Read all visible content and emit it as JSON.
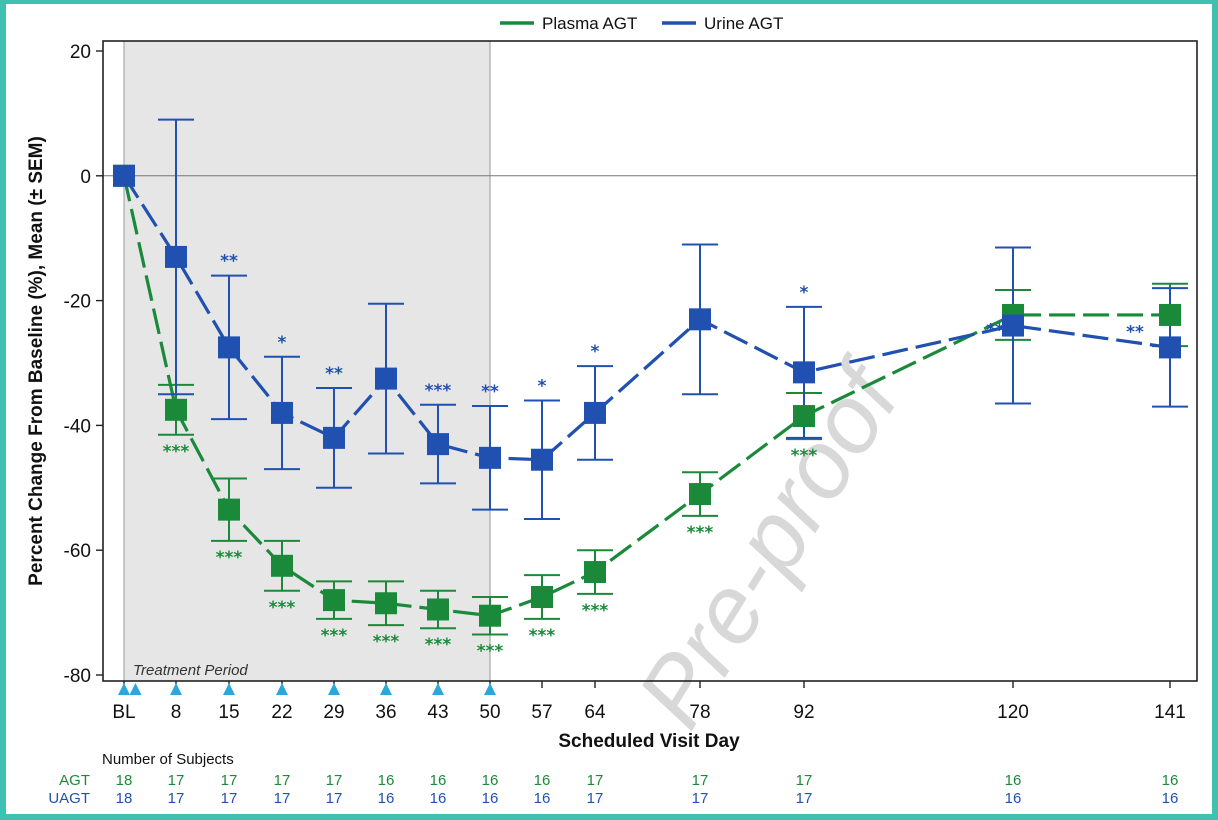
{
  "chart_data": {
    "type": "line",
    "x_categories": [
      "BL",
      "8",
      "15",
      "22",
      "29",
      "36",
      "43",
      "50",
      "57",
      "64",
      "78",
      "92",
      "120",
      "141"
    ],
    "x_days": [
      0,
      8,
      15,
      22,
      29,
      36,
      43,
      50,
      57,
      64,
      78,
      92,
      120,
      141
    ],
    "xlabel": "Scheduled Visit Day",
    "ylabel": "Percent Change From Baseline (%),  Mean (± SEM)",
    "ylim": [
      -80,
      20
    ],
    "yticks": [
      "20",
      "0",
      "-20",
      "-40",
      "-60",
      "-80"
    ],
    "shaded_region_label": "Treatment Period",
    "shaded_region": [
      0,
      50
    ],
    "dosing_days": [
      0,
      1,
      8,
      15,
      22,
      29,
      36,
      43,
      50
    ],
    "legend": {
      "placement": "top-center"
    },
    "series": [
      {
        "name": "Plasma AGT",
        "color": "#1a8a3a",
        "days": [
          0,
          8,
          15,
          22,
          29,
          36,
          43,
          50,
          57,
          64,
          78,
          92,
          120,
          141
        ],
        "values": [
          0,
          -37.5,
          -53.5,
          -62.5,
          -68,
          -68.5,
          -69.5,
          -70.5,
          -67.5,
          -63.5,
          -51,
          -38.5,
          -22.3,
          -22.3
        ],
        "sem": [
          0,
          4,
          5,
          4,
          3,
          3.5,
          3,
          3,
          3.5,
          3.5,
          3.5,
          3.7,
          4,
          5
        ],
        "stars": [
          "",
          "***",
          "***",
          "***",
          "***",
          "***",
          "***",
          "***",
          "***",
          "***",
          "***",
          "***",
          "",
          ""
        ]
      },
      {
        "name": "Urine AGT",
        "color": "#2050b0",
        "days": [
          0,
          8,
          15,
          22,
          29,
          36,
          43,
          50,
          57,
          64,
          78,
          92,
          120,
          141
        ],
        "values": [
          0,
          -13,
          -27.5,
          -38,
          -42,
          -32.5,
          -43,
          -45.2,
          -45.5,
          -38,
          -23,
          -31.5,
          -24,
          -27.5
        ],
        "sem": [
          0,
          22,
          11.5,
          9,
          8,
          12,
          6.3,
          8.3,
          9.5,
          7.5,
          12,
          10.5,
          12.5,
          9.5
        ],
        "stars": [
          "",
          "",
          "**",
          "*",
          "**",
          "",
          "***",
          "**",
          "*",
          "*",
          "",
          "*",
          "**",
          "**"
        ]
      }
    ]
  },
  "subjects": {
    "title": "Number of Subjects",
    "rows": [
      {
        "label": "AGT",
        "color": "#1a8a3a",
        "counts": [
          "18",
          "17",
          "17",
          "17",
          "17",
          "16",
          "16",
          "16",
          "16",
          "17",
          "17",
          "17",
          "16",
          "16"
        ]
      },
      {
        "label": "UAGT",
        "color": "#2050b0",
        "counts": [
          "18",
          "17",
          "17",
          "17",
          "17",
          "16",
          "16",
          "16",
          "16",
          "17",
          "17",
          "17",
          "16",
          "16"
        ]
      }
    ]
  },
  "watermark": "Pre-proof"
}
